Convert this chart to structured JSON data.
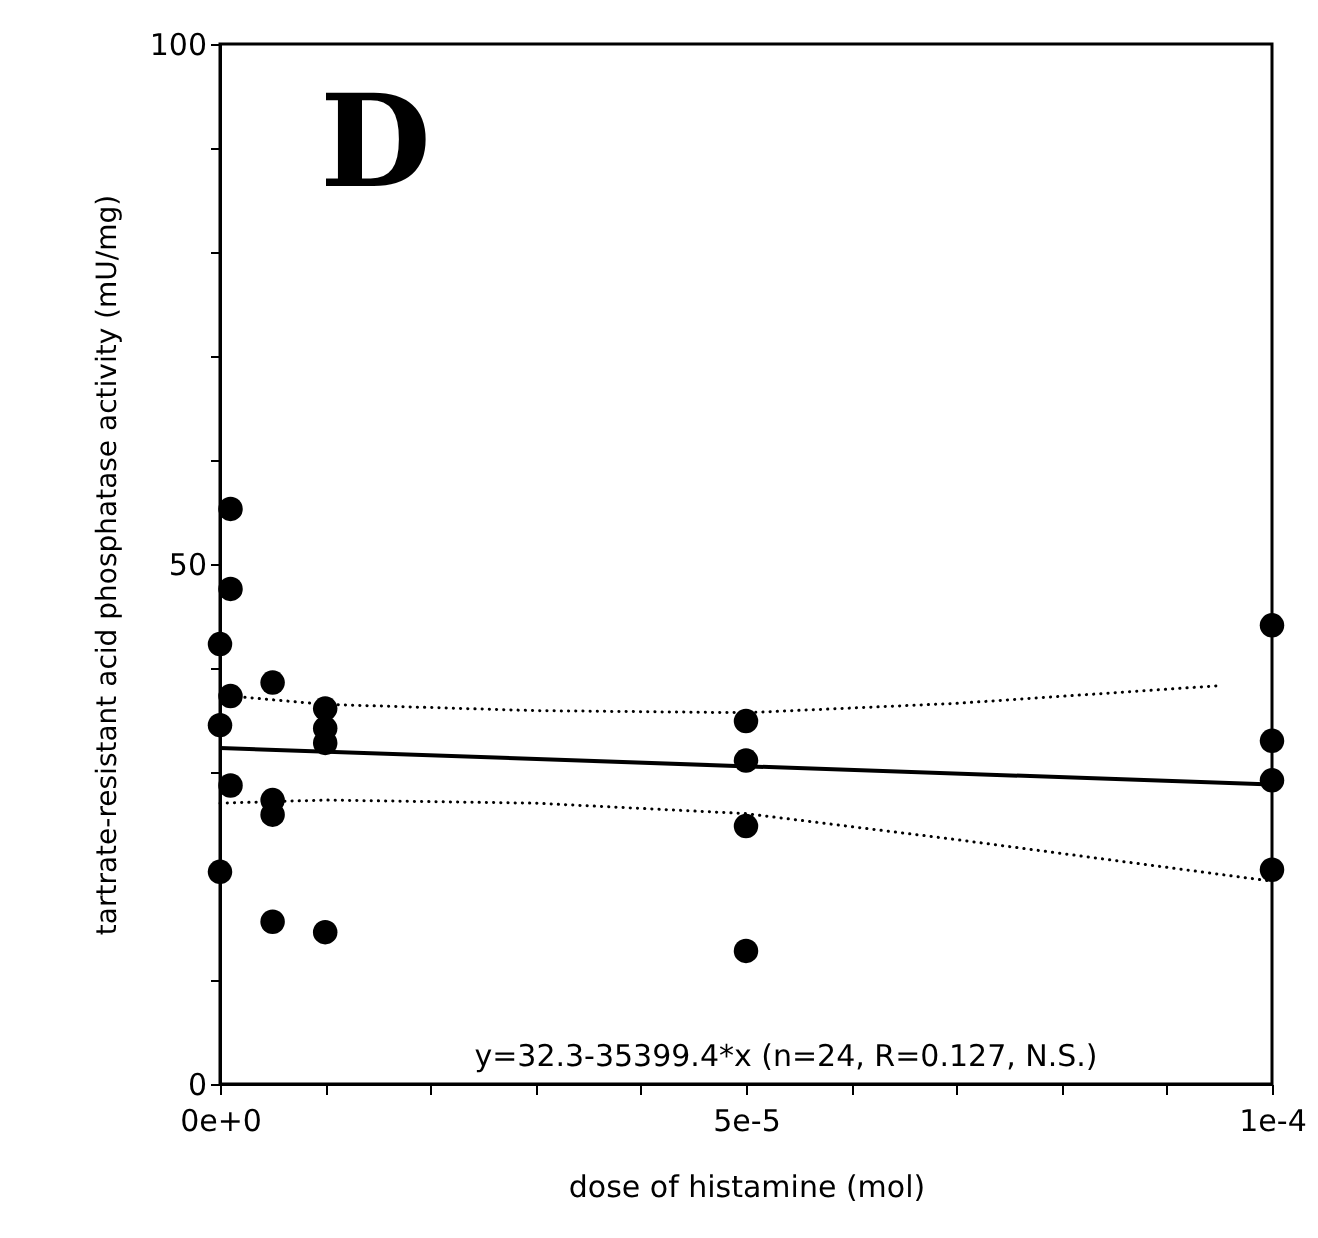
{
  "chart_data": {
    "type": "scatter",
    "xlabel": "dose of histamine (mol)",
    "ylabel": "tartrate-resistant acid phosphatase activity (mU/mg)",
    "annotations": [
      "D",
      "y=32.3-35399.4*x (n=24, R=0.127, N.S.)"
    ],
    "xlim": [
      0,
      0.0001
    ],
    "ylim": [
      0,
      100
    ],
    "xticks": [
      {
        "value": 0,
        "label": "0e+0"
      },
      {
        "value": 1e-05,
        "label": null
      },
      {
        "value": 2e-05,
        "label": null
      },
      {
        "value": 3e-05,
        "label": null
      },
      {
        "value": 4e-05,
        "label": null
      },
      {
        "value": 5e-05,
        "label": "5e-5"
      },
      {
        "value": 6e-05,
        "label": null
      },
      {
        "value": 7e-05,
        "label": null
      },
      {
        "value": 8e-05,
        "label": null
      },
      {
        "value": 9e-05,
        "label": null
      },
      {
        "value": 0.0001,
        "label": "1e-4"
      }
    ],
    "yticks": [
      0,
      {
        "value": 10,
        "label": null
      },
      {
        "value": 20,
        "label": null
      },
      {
        "value": 30,
        "label": null
      },
      {
        "value": 40,
        "label": null
      },
      50,
      {
        "value": 60,
        "label": null
      },
      {
        "value": 70,
        "label": null
      },
      {
        "value": 80,
        "label": null
      },
      {
        "value": 90,
        "label": null
      },
      100
    ],
    "grid": false,
    "marker": "circle",
    "series": [
      {
        "color": "#000000",
        "x": [
          0,
          0,
          0,
          1e-06,
          1e-06,
          1e-06,
          1e-06,
          5e-06,
          5e-06,
          5e-06,
          5e-06,
          1e-05,
          1e-05,
          1e-05,
          1e-05,
          5e-05,
          5e-05,
          5e-05,
          5e-05,
          0.0001,
          0.0001,
          0.0001,
          0.0001
        ],
        "values": [
          42.3,
          34.5,
          20.4,
          55.3,
          47.6,
          37.3,
          28.7,
          38.6,
          27.3,
          25.9,
          15.6,
          36.1,
          34.2,
          32.8,
          14.6,
          34.9,
          31.1,
          24.8,
          12.8,
          44.1,
          33.0,
          29.2,
          20.6
        ]
      },
      {
        "type": "line",
        "color": "#000000",
        "line_style": "solid",
        "marker": "none",
        "x": [
          0,
          0.0001
        ],
        "values": [
          32.3,
          28.8
        ]
      },
      {
        "type": "line",
        "color": "#000000",
        "line_style": "dotted",
        "marker": "none",
        "x": [
          1e-06,
          1e-05,
          3e-05,
          5e-05,
          7e-05,
          9.5e-05
        ],
        "values": [
          37.3,
          36.5,
          35.9,
          35.7,
          36.6,
          38.3
        ]
      },
      {
        "type": "line",
        "color": "#000000",
        "line_style": "dotted",
        "marker": "none",
        "x": [
          0,
          1e-05,
          3e-05,
          5e-05,
          7e-05,
          0.0001
        ],
        "values": [
          27.0,
          27.3,
          27.0,
          26.0,
          23.5,
          19.5
        ]
      }
    ]
  }
}
